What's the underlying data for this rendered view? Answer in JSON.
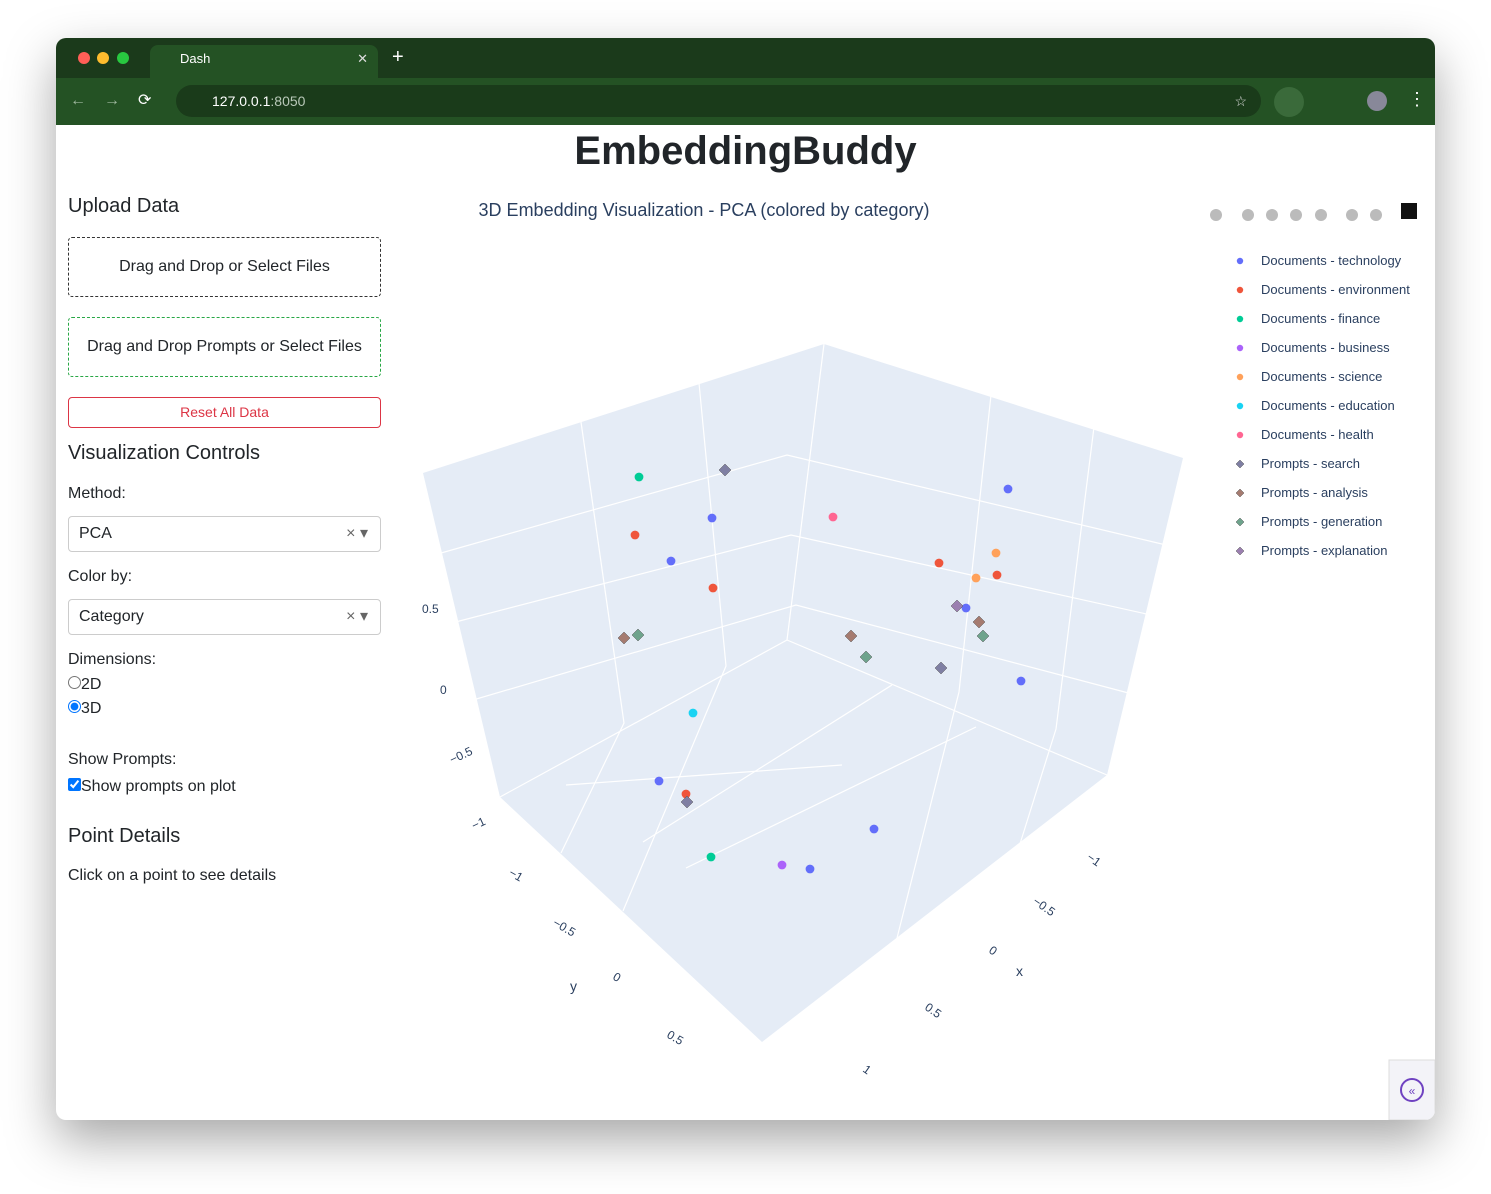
{
  "browser": {
    "tab_title": "Dash",
    "url_host": "127.0.0.1",
    "url_port": ":8050"
  },
  "header": {
    "title": "EmbeddingBuddy"
  },
  "sidebar": {
    "upload_heading": "Upload Data",
    "upload_files": "Drag and Drop or Select Files",
    "upload_prompts": "Drag and Drop Prompts or Select Files",
    "reset": "Reset All Data",
    "controls_heading": "Visualization Controls",
    "method_label": "Method:",
    "method_value": "PCA",
    "color_label": "Color by:",
    "color_value": "Category",
    "dimensions_label": "Dimensions:",
    "dimension_options": [
      "2D",
      "3D"
    ],
    "dimension_selected": "3D",
    "prompts_label": "Show Prompts:",
    "prompts_checkbox": "Show prompts on plot",
    "prompts_checked": true,
    "details_heading": "Point Details",
    "details_text": "Click on a point to see details"
  },
  "plot": {
    "title": "3D Embedding Visualization - PCA (colored by category)",
    "legend": [
      {
        "name": "Documents - technology",
        "color": "#636efa",
        "symbol": "circle"
      },
      {
        "name": "Documents - environment",
        "color": "#ef553b",
        "symbol": "circle"
      },
      {
        "name": "Documents - finance",
        "color": "#00cc96",
        "symbol": "circle"
      },
      {
        "name": "Documents - business",
        "color": "#ab63fa",
        "symbol": "circle"
      },
      {
        "name": "Documents - science",
        "color": "#ffa15a",
        "symbol": "circle"
      },
      {
        "name": "Documents - education",
        "color": "#19d3f3",
        "symbol": "circle"
      },
      {
        "name": "Documents - health",
        "color": "#ff6692",
        "symbol": "circle"
      },
      {
        "name": "Prompts - search",
        "color": "#7f7fa3",
        "symbol": "diamond"
      },
      {
        "name": "Prompts - analysis",
        "color": "#a57b70",
        "symbol": "diamond"
      },
      {
        "name": "Prompts - generation",
        "color": "#6ea38c",
        "symbol": "diamond"
      },
      {
        "name": "Prompts - explanation",
        "color": "#9b7fb0",
        "symbol": "diamond"
      }
    ],
    "x_axis": {
      "label": "x",
      "ticks": [
        "−1",
        "−0.5",
        "0",
        "0.5",
        "1"
      ]
    },
    "y_axis": {
      "label": "y",
      "ticks": [
        "−1",
        "−0.5",
        "0",
        "0.5"
      ]
    },
    "z_axis": {
      "ticks": [
        "0.5",
        "0",
        "−0.5",
        "−1"
      ]
    }
  }
}
